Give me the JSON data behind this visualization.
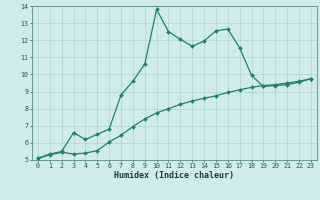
{
  "xlabel": "Humidex (Indice chaleur)",
  "x_values": [
    0,
    1,
    2,
    3,
    4,
    5,
    6,
    7,
    8,
    9,
    10,
    11,
    12,
    13,
    14,
    15,
    16,
    17,
    18,
    19,
    20,
    21,
    22,
    23
  ],
  "line1_y": [
    5.1,
    5.35,
    5.5,
    6.6,
    6.2,
    6.5,
    6.8,
    8.8,
    9.6,
    10.6,
    13.8,
    12.5,
    12.05,
    11.65,
    11.95,
    12.55,
    12.65,
    11.55,
    9.95,
    9.3,
    9.35,
    9.4,
    9.55,
    9.75
  ],
  "line2_y": [
    5.1,
    5.3,
    5.45,
    5.35,
    5.4,
    5.55,
    6.05,
    6.45,
    6.95,
    7.4,
    7.75,
    8.0,
    8.25,
    8.45,
    8.6,
    8.75,
    8.95,
    9.1,
    9.25,
    9.35,
    9.4,
    9.5,
    9.6,
    9.75
  ],
  "line_color": "#1e7f72",
  "bg_color": "#d0ecea",
  "grid_color": "#a8cdc9",
  "xlim_min": -0.5,
  "xlim_max": 23.5,
  "ylim_min": 5,
  "ylim_max": 14,
  "yticks": [
    5,
    6,
    7,
    8,
    9,
    10,
    11,
    12,
    13,
    14
  ],
  "xticks": [
    0,
    1,
    2,
    3,
    4,
    5,
    6,
    7,
    8,
    9,
    10,
    11,
    12,
    13,
    14,
    15,
    16,
    17,
    18,
    19,
    20,
    21,
    22,
    23
  ],
  "marker": "D",
  "marker_size": 2.0,
  "linewidth": 0.9,
  "xlabel_fontsize": 6.0,
  "tick_fontsize": 4.8
}
